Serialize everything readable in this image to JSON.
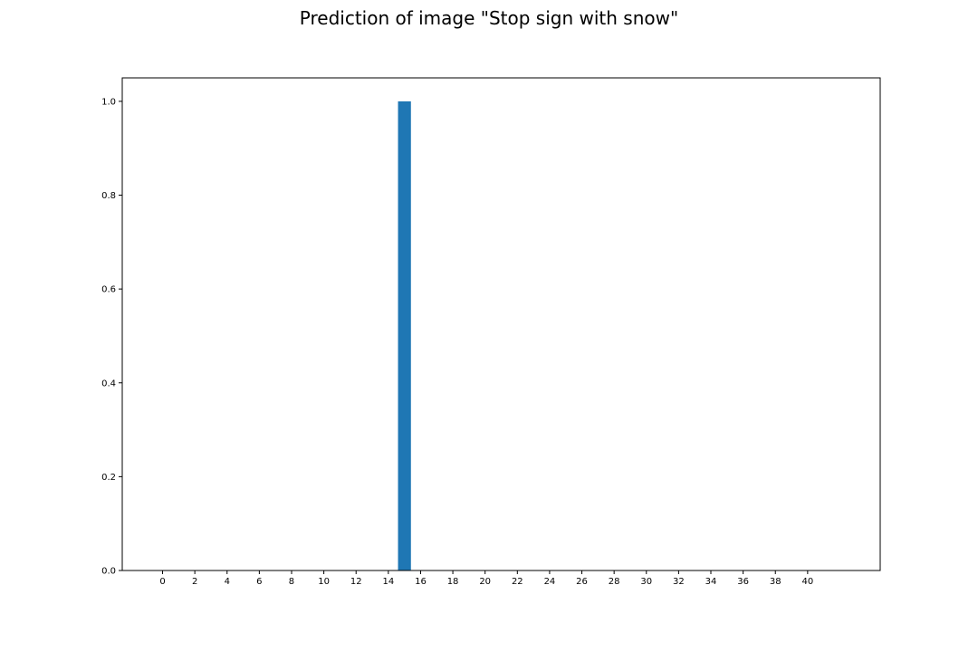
{
  "chart_data": {
    "type": "bar",
    "title": "Prediction of image \"Stop sign with snow\"",
    "xlabel": "",
    "ylabel": "",
    "x": [
      0,
      1,
      2,
      3,
      4,
      5,
      6,
      7,
      8,
      9,
      10,
      11,
      12,
      13,
      14,
      15,
      16,
      17,
      18,
      19,
      20,
      21,
      22,
      23,
      24,
      25,
      26,
      27,
      28,
      29,
      30,
      31,
      32,
      33,
      34,
      35,
      36,
      37,
      38,
      39,
      40,
      41,
      42
    ],
    "values": [
      0,
      0,
      0,
      0,
      0,
      0,
      0,
      0,
      0,
      0,
      0,
      0,
      0,
      0,
      0,
      1.0,
      0,
      0,
      0,
      0,
      0,
      0,
      0,
      0,
      0,
      0,
      0,
      0,
      0,
      0,
      0,
      0,
      0,
      0,
      0,
      0,
      0,
      0,
      0,
      0,
      0,
      0,
      0
    ],
    "xticks": [
      0,
      2,
      4,
      6,
      8,
      10,
      12,
      14,
      16,
      18,
      20,
      22,
      24,
      26,
      28,
      30,
      32,
      34,
      36,
      38,
      40
    ],
    "xticklabels": [
      "0",
      "2",
      "4",
      "6",
      "8",
      "10",
      "12",
      "14",
      "16",
      "18",
      "20",
      "22",
      "24",
      "26",
      "28",
      "30",
      "32",
      "34",
      "36",
      "38",
      "40"
    ],
    "yticks": [
      0.0,
      0.2,
      0.4,
      0.6,
      0.8,
      1.0
    ],
    "yticklabels": [
      "0.0",
      "0.2",
      "0.4",
      "0.6",
      "0.8",
      "1.0"
    ],
    "xlim": [
      -2.5,
      44.5
    ],
    "ylim": [
      0,
      1.05
    ],
    "grid": false,
    "colors": {
      "bar": "#1f77b4",
      "axes": "#000000",
      "background": "#ffffff"
    }
  }
}
